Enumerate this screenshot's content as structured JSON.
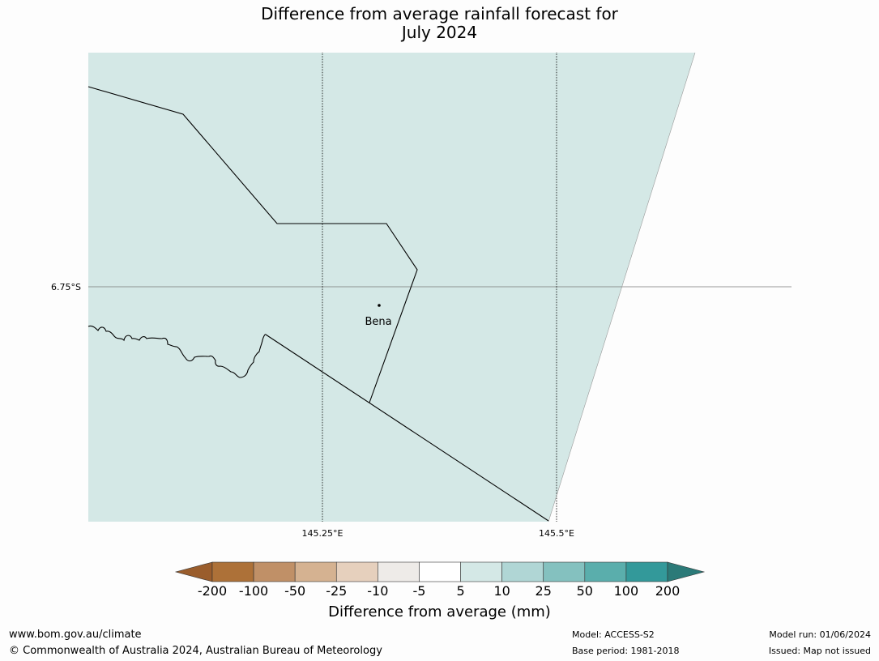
{
  "title_line1": "Difference from average rainfall forecast for",
  "title_line2": "July 2024",
  "map": {
    "fill_color": "#d4e8e6",
    "background": "#fdfdfd",
    "lat_label": "6.75°S",
    "lon_labels": [
      "145.25°E",
      "145.5°E"
    ],
    "place_name": "Bena"
  },
  "colorbar": {
    "title": "Difference from average (mm)",
    "tick_labels": [
      "-200",
      "-100",
      "-50",
      "-25",
      "-10",
      "-5",
      "5",
      "10",
      "25",
      "50",
      "100",
      "200"
    ],
    "colors": [
      "#9a5d2c",
      "#ad7138",
      "#c09067",
      "#d5b291",
      "#e6d0bd",
      "#eeebe8",
      "#ffffff",
      "#d4e8e6",
      "#b0d6d5",
      "#84c1bf",
      "#5aaeac",
      "#33999a",
      "#2b7a78"
    ]
  },
  "footer": {
    "website": "www.bom.gov.au/climate",
    "copyright": "© Commonwealth of Australia 2024, Australian Bureau of Meteorology",
    "model": "Model: ACCESS-S2",
    "base_period": "Base period: 1981-2018",
    "model_run": "Model run: 01/06/2024",
    "issued": "Issued: Map not issued"
  }
}
